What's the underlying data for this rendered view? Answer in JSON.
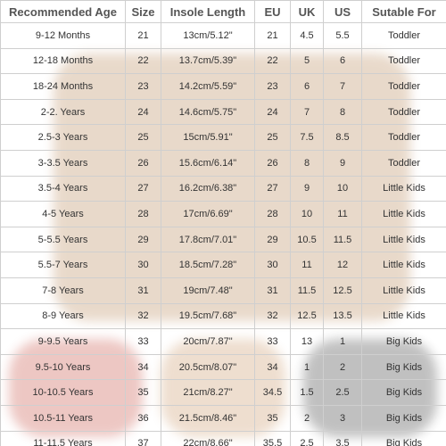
{
  "table": {
    "header": [
      "Recommended Age",
      "Size",
      "Insole Length",
      "EU",
      "UK",
      "US",
      "Sutable For"
    ],
    "rows": [
      [
        "9-12 Months",
        "21",
        "13cm/5.12\"",
        "21",
        "4.5",
        "5.5",
        "Toddler"
      ],
      [
        "12-18 Months",
        "22",
        "13.7cm/5.39\"",
        "22",
        "5",
        "6",
        "Toddler"
      ],
      [
        "18-24 Months",
        "23",
        "14.2cm/5.59\"",
        "23",
        "6",
        "7",
        "Toddler"
      ],
      [
        "2-2. Years",
        "24",
        "14.6cm/5.75\"",
        "24",
        "7",
        "8",
        "Toddler"
      ],
      [
        "2.5-3 Years",
        "25",
        "15cm/5.91\"",
        "25",
        "7.5",
        "8.5",
        "Toddler"
      ],
      [
        "3-3.5 Years",
        "26",
        "15.6cm/6.14\"",
        "26",
        "8",
        "9",
        "Toddler"
      ],
      [
        "3.5-4 Years",
        "27",
        "16.2cm/6.38\"",
        "27",
        "9",
        "10",
        "Little Kids"
      ],
      [
        "4-5 Years",
        "28",
        "17cm/6.69\"",
        "28",
        "10",
        "11",
        "Little Kids"
      ],
      [
        "5-5.5 Years",
        "29",
        "17.8cm/7.01\"",
        "29",
        "10.5",
        "11.5",
        "Little Kids"
      ],
      [
        "5.5-7 Years",
        "30",
        "18.5cm/7.28\"",
        "30",
        "11",
        "12",
        "Little Kids"
      ],
      [
        "7-8 Years",
        "31",
        "19cm/7.48\"",
        "31",
        "11.5",
        "12.5",
        "Little Kids"
      ],
      [
        "8-9 Years",
        "32",
        "19.5cm/7.68\"",
        "32",
        "12.5",
        "13.5",
        "Little Kids"
      ],
      [
        "9-9.5 Years",
        "33",
        "20cm/7.87\"",
        "33",
        "13",
        "1",
        "Big Kids"
      ],
      [
        "9.5-10 Years",
        "34",
        "20.5cm/8.07\"",
        "34",
        "1",
        "2",
        "Big Kids"
      ],
      [
        "10-10.5 Years",
        "35",
        "21cm/8.27\"",
        "34.5",
        "1.5",
        "2.5",
        "Big Kids"
      ],
      [
        "10.5-11 Years",
        "36",
        "21.5cm/8.46\"",
        "35",
        "2",
        "3",
        "Big Kids"
      ],
      [
        "11-11.5 Years",
        "37",
        "22cm/8.66\"",
        "35.5",
        "2.5",
        "3.5",
        "Big Kids"
      ]
    ]
  }
}
